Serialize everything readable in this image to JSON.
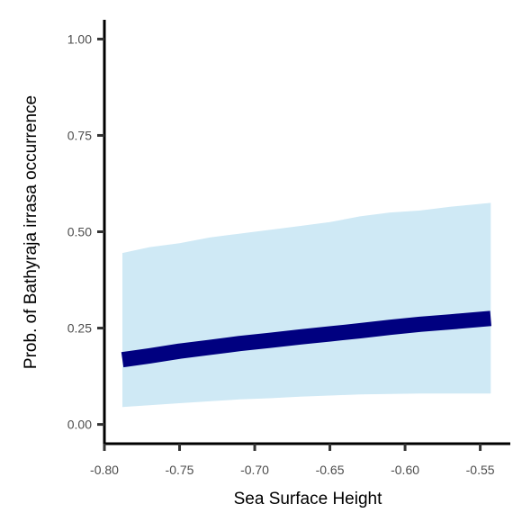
{
  "chart_data": {
    "type": "line",
    "xlabel": "Sea Surface Height",
    "ylabel": "Prob. of  Bathyraja irrasa  occurrence",
    "xlim": [
      -0.8,
      -0.53
    ],
    "ylim": [
      -0.05,
      1.05
    ],
    "x_ticks": [
      -0.8,
      -0.75,
      -0.7,
      -0.65,
      -0.6,
      -0.55
    ],
    "x_tick_labels": [
      "-0.80",
      "-0.75",
      "-0.70",
      "-0.65",
      "-0.60",
      "-0.55"
    ],
    "y_ticks": [
      0.0,
      0.25,
      0.5,
      0.75,
      1.0
    ],
    "y_tick_labels": [
      "0.00",
      "0.25",
      "0.50",
      "0.75",
      "1.00"
    ],
    "grid": false,
    "series": [
      {
        "type": "line",
        "color": "#000080",
        "x": [
          -0.788,
          -0.77,
          -0.75,
          -0.73,
          -0.71,
          -0.69,
          -0.67,
          -0.65,
          -0.63,
          -0.61,
          -0.59,
          -0.57,
          -0.543
        ],
        "y": [
          0.168,
          0.178,
          0.19,
          0.2,
          0.21,
          0.218,
          0.227,
          0.235,
          0.243,
          0.252,
          0.26,
          0.266,
          0.275
        ]
      },
      {
        "type": "band",
        "color": "#cfe9f5",
        "x": [
          -0.788,
          -0.77,
          -0.75,
          -0.73,
          -0.71,
          -0.69,
          -0.67,
          -0.65,
          -0.63,
          -0.61,
          -0.59,
          -0.57,
          -0.543
        ],
        "lower": [
          0.045,
          0.05,
          0.055,
          0.06,
          0.065,
          0.068,
          0.072,
          0.075,
          0.078,
          0.079,
          0.08,
          0.08,
          0.08
        ],
        "upper": [
          0.445,
          0.46,
          0.47,
          0.485,
          0.495,
          0.505,
          0.515,
          0.525,
          0.54,
          0.55,
          0.555,
          0.565,
          0.575
        ]
      }
    ]
  }
}
